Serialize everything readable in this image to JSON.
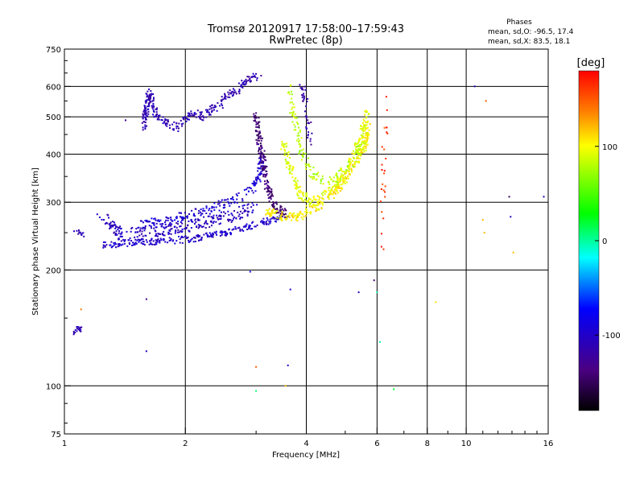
{
  "chart_data": {
    "type": "scatter",
    "title": "Tromsø 20120917 17:58:00–17:59:43",
    "subtitle": "RwPretec (8p)",
    "stats_title": "Phases",
    "stats_lines": [
      "mean, sd,O:  -96.5, 17.4",
      "mean, sd,X:   83.5, 18.1"
    ],
    "xlabel": "Frequency [MHz]",
    "ylabel": "Stationary phase Virtual Height [km]",
    "x_scale": "log",
    "y_scale": "log",
    "xlim": [
      1,
      16
    ],
    "ylim": [
      75,
      750
    ],
    "x_ticks": [
      {
        "value": 1,
        "label": "1"
      },
      {
        "value": 2,
        "label": "2"
      },
      {
        "value": 4,
        "label": "4"
      },
      {
        "value": 6,
        "label": "6"
      },
      {
        "value": 8,
        "label": "8"
      },
      {
        "value": 10,
        "label": "10"
      },
      {
        "value": 16,
        "label": "16"
      }
    ],
    "x_grid": [
      2,
      4,
      6,
      8,
      10
    ],
    "y_ticks": [
      {
        "value": 75,
        "label": "75"
      },
      {
        "value": 100,
        "label": "100"
      },
      {
        "value": 200,
        "label": "200"
      },
      {
        "value": 300,
        "label": "300"
      },
      {
        "value": 400,
        "label": "400"
      },
      {
        "value": 500,
        "label": "500"
      },
      {
        "value": 600,
        "label": "600"
      },
      {
        "value": 750,
        "label": "750"
      }
    ],
    "y_grid": [
      100,
      200,
      300,
      400,
      500,
      600
    ],
    "grid": true,
    "colorbar": {
      "label": "[deg]",
      "min": -180,
      "max": 180,
      "ticks": [
        {
          "value": 100,
          "label": "100"
        },
        {
          "value": 0,
          "label": "0"
        },
        {
          "value": -100,
          "label": "-100"
        }
      ]
    },
    "series": [
      {
        "traces": [
          {
            "points": [
              [
                1.05,
                135
              ],
              [
                1.07,
                138
              ],
              [
                1.09,
                142
              ],
              [
                1.1,
                137
              ]
            ],
            "phase": -110,
            "spread": 3,
            "count": 18
          },
          {
            "points": [
              [
                1.06,
                253
              ],
              [
                1.09,
                250
              ],
              [
                1.12,
                246
              ]
            ],
            "phase": -115,
            "spread": 2,
            "count": 12
          },
          {
            "points": [
              [
                1.25,
                232
              ],
              [
                1.35,
                234
              ],
              [
                1.5,
                236
              ],
              [
                1.7,
                237
              ],
              [
                2.0,
                240
              ],
              [
                2.3,
                245
              ],
              [
                2.6,
                252
              ],
              [
                2.9,
                260
              ],
              [
                3.2,
                268
              ],
              [
                3.5,
                275
              ]
            ],
            "phase": -100,
            "spread": 4,
            "count": 260
          },
          {
            "points": [
              [
                1.22,
                275
              ],
              [
                1.28,
                270
              ],
              [
                1.32,
                258
              ],
              [
                1.38,
                248
              ],
              [
                1.5,
                250
              ],
              [
                1.8,
                255
              ],
              [
                2.1,
                262
              ],
              [
                2.4,
                270
              ],
              [
                2.7,
                280
              ],
              [
                3.0,
                292
              ]
            ],
            "phase": -105,
            "spread": 7,
            "count": 260
          },
          {
            "points": [
              [
                1.55,
                260
              ],
              [
                1.75,
                268
              ],
              [
                2.0,
                275
              ],
              [
                2.3,
                288
              ],
              [
                2.6,
                300
              ],
              [
                2.9,
                320
              ],
              [
                3.05,
                350
              ],
              [
                3.1,
                390
              ]
            ],
            "phase": -95,
            "spread": 6,
            "count": 200
          },
          {
            "points": [
              [
                1.58,
                470
              ],
              [
                1.6,
                530
              ],
              [
                1.62,
                580
              ],
              [
                1.66,
                540
              ],
              [
                1.7,
                500
              ],
              [
                1.8,
                480
              ],
              [
                1.9,
                470
              ],
              [
                2.0,
                495
              ],
              [
                2.1,
                510
              ],
              [
                2.2,
                500
              ],
              [
                2.3,
                520
              ],
              [
                2.45,
                540
              ],
              [
                2.55,
                570
              ],
              [
                2.7,
                590
              ],
              [
                2.85,
                620
              ],
              [
                2.95,
                640
              ],
              [
                3.05,
                630
              ]
            ],
            "phase": -112,
            "spread": 5,
            "count": 300
          },
          {
            "points": [
              [
                3.0,
                500
              ],
              [
                3.05,
                440
              ],
              [
                3.1,
                400
              ],
              [
                3.15,
                360
              ],
              [
                3.2,
                330
              ],
              [
                3.3,
                300
              ],
              [
                3.45,
                285
              ],
              [
                3.6,
                280
              ]
            ],
            "phase": -140,
            "spread": 7,
            "count": 200
          },
          {
            "points": [
              [
                3.2,
                285
              ],
              [
                3.5,
                275
              ],
              [
                3.8,
                275
              ],
              [
                4.1,
                285
              ],
              [
                4.4,
                300
              ],
              [
                4.7,
                320
              ],
              [
                5.0,
                345
              ],
              [
                5.3,
                380
              ],
              [
                5.6,
                420
              ],
              [
                5.7,
                480
              ]
            ],
            "phase": 105,
            "spread": 5,
            "count": 280
          },
          {
            "points": [
              [
                3.5,
                430
              ],
              [
                3.6,
                380
              ],
              [
                3.75,
                340
              ],
              [
                3.9,
                310
              ],
              [
                4.1,
                300
              ],
              [
                4.4,
                310
              ],
              [
                4.7,
                330
              ],
              [
                5.0,
                360
              ],
              [
                5.3,
                400
              ],
              [
                5.5,
                450
              ],
              [
                5.7,
                520
              ]
            ],
            "phase": 95,
            "spread": 6,
            "count": 260
          },
          {
            "points": [
              [
                3.6,
                600
              ],
              [
                3.7,
                520
              ],
              [
                3.8,
                450
              ],
              [
                3.9,
                400
              ],
              [
                4.1,
                360
              ],
              [
                4.4,
                340
              ],
              [
                4.8,
                350
              ],
              [
                5.2,
                380
              ],
              [
                5.6,
                440
              ]
            ],
            "phase": 80,
            "spread": 7,
            "count": 150
          },
          {
            "points": [
              [
                3.9,
                600
              ],
              [
                4.0,
                540
              ],
              [
                4.05,
                480
              ],
              [
                4.1,
                430
              ]
            ],
            "phase": -120,
            "spread": 4,
            "count": 40
          },
          {
            "points": [
              [
                6.15,
                220
              ],
              [
                6.2,
                300
              ],
              [
                6.25,
                400
              ],
              [
                6.3,
                500
              ],
              [
                6.35,
                600
              ]
            ],
            "phase": 160,
            "spread": 3,
            "count": 26
          }
        ],
        "scatter": [
          [
            10.5,
            600,
            -110
          ],
          [
            12.8,
            310,
            -150
          ],
          [
            15.6,
            310,
            -110
          ],
          [
            12.9,
            275,
            -110
          ],
          [
            11.2,
            550,
            150
          ],
          [
            11.0,
            270,
            120
          ],
          [
            11.1,
            250,
            120
          ],
          [
            13.1,
            222,
            120
          ],
          [
            8.4,
            165,
            110
          ],
          [
            6.6,
            98,
            20
          ],
          [
            6.1,
            130,
            0
          ],
          [
            6.0,
            175,
            0
          ],
          [
            5.9,
            188,
            -140
          ],
          [
            5.4,
            175,
            -110
          ],
          [
            3.65,
            178,
            -100
          ],
          [
            3.6,
            113,
            -100
          ],
          [
            2.9,
            198,
            -80
          ],
          [
            3.0,
            97,
            10
          ],
          [
            3.0,
            112,
            150
          ],
          [
            1.6,
            168,
            -130
          ],
          [
            1.6,
            123,
            -110
          ],
          [
            1.1,
            158,
            140
          ],
          [
            1.42,
            490,
            -130
          ],
          [
            3.55,
            100,
            120
          ]
        ]
      }
    ]
  }
}
